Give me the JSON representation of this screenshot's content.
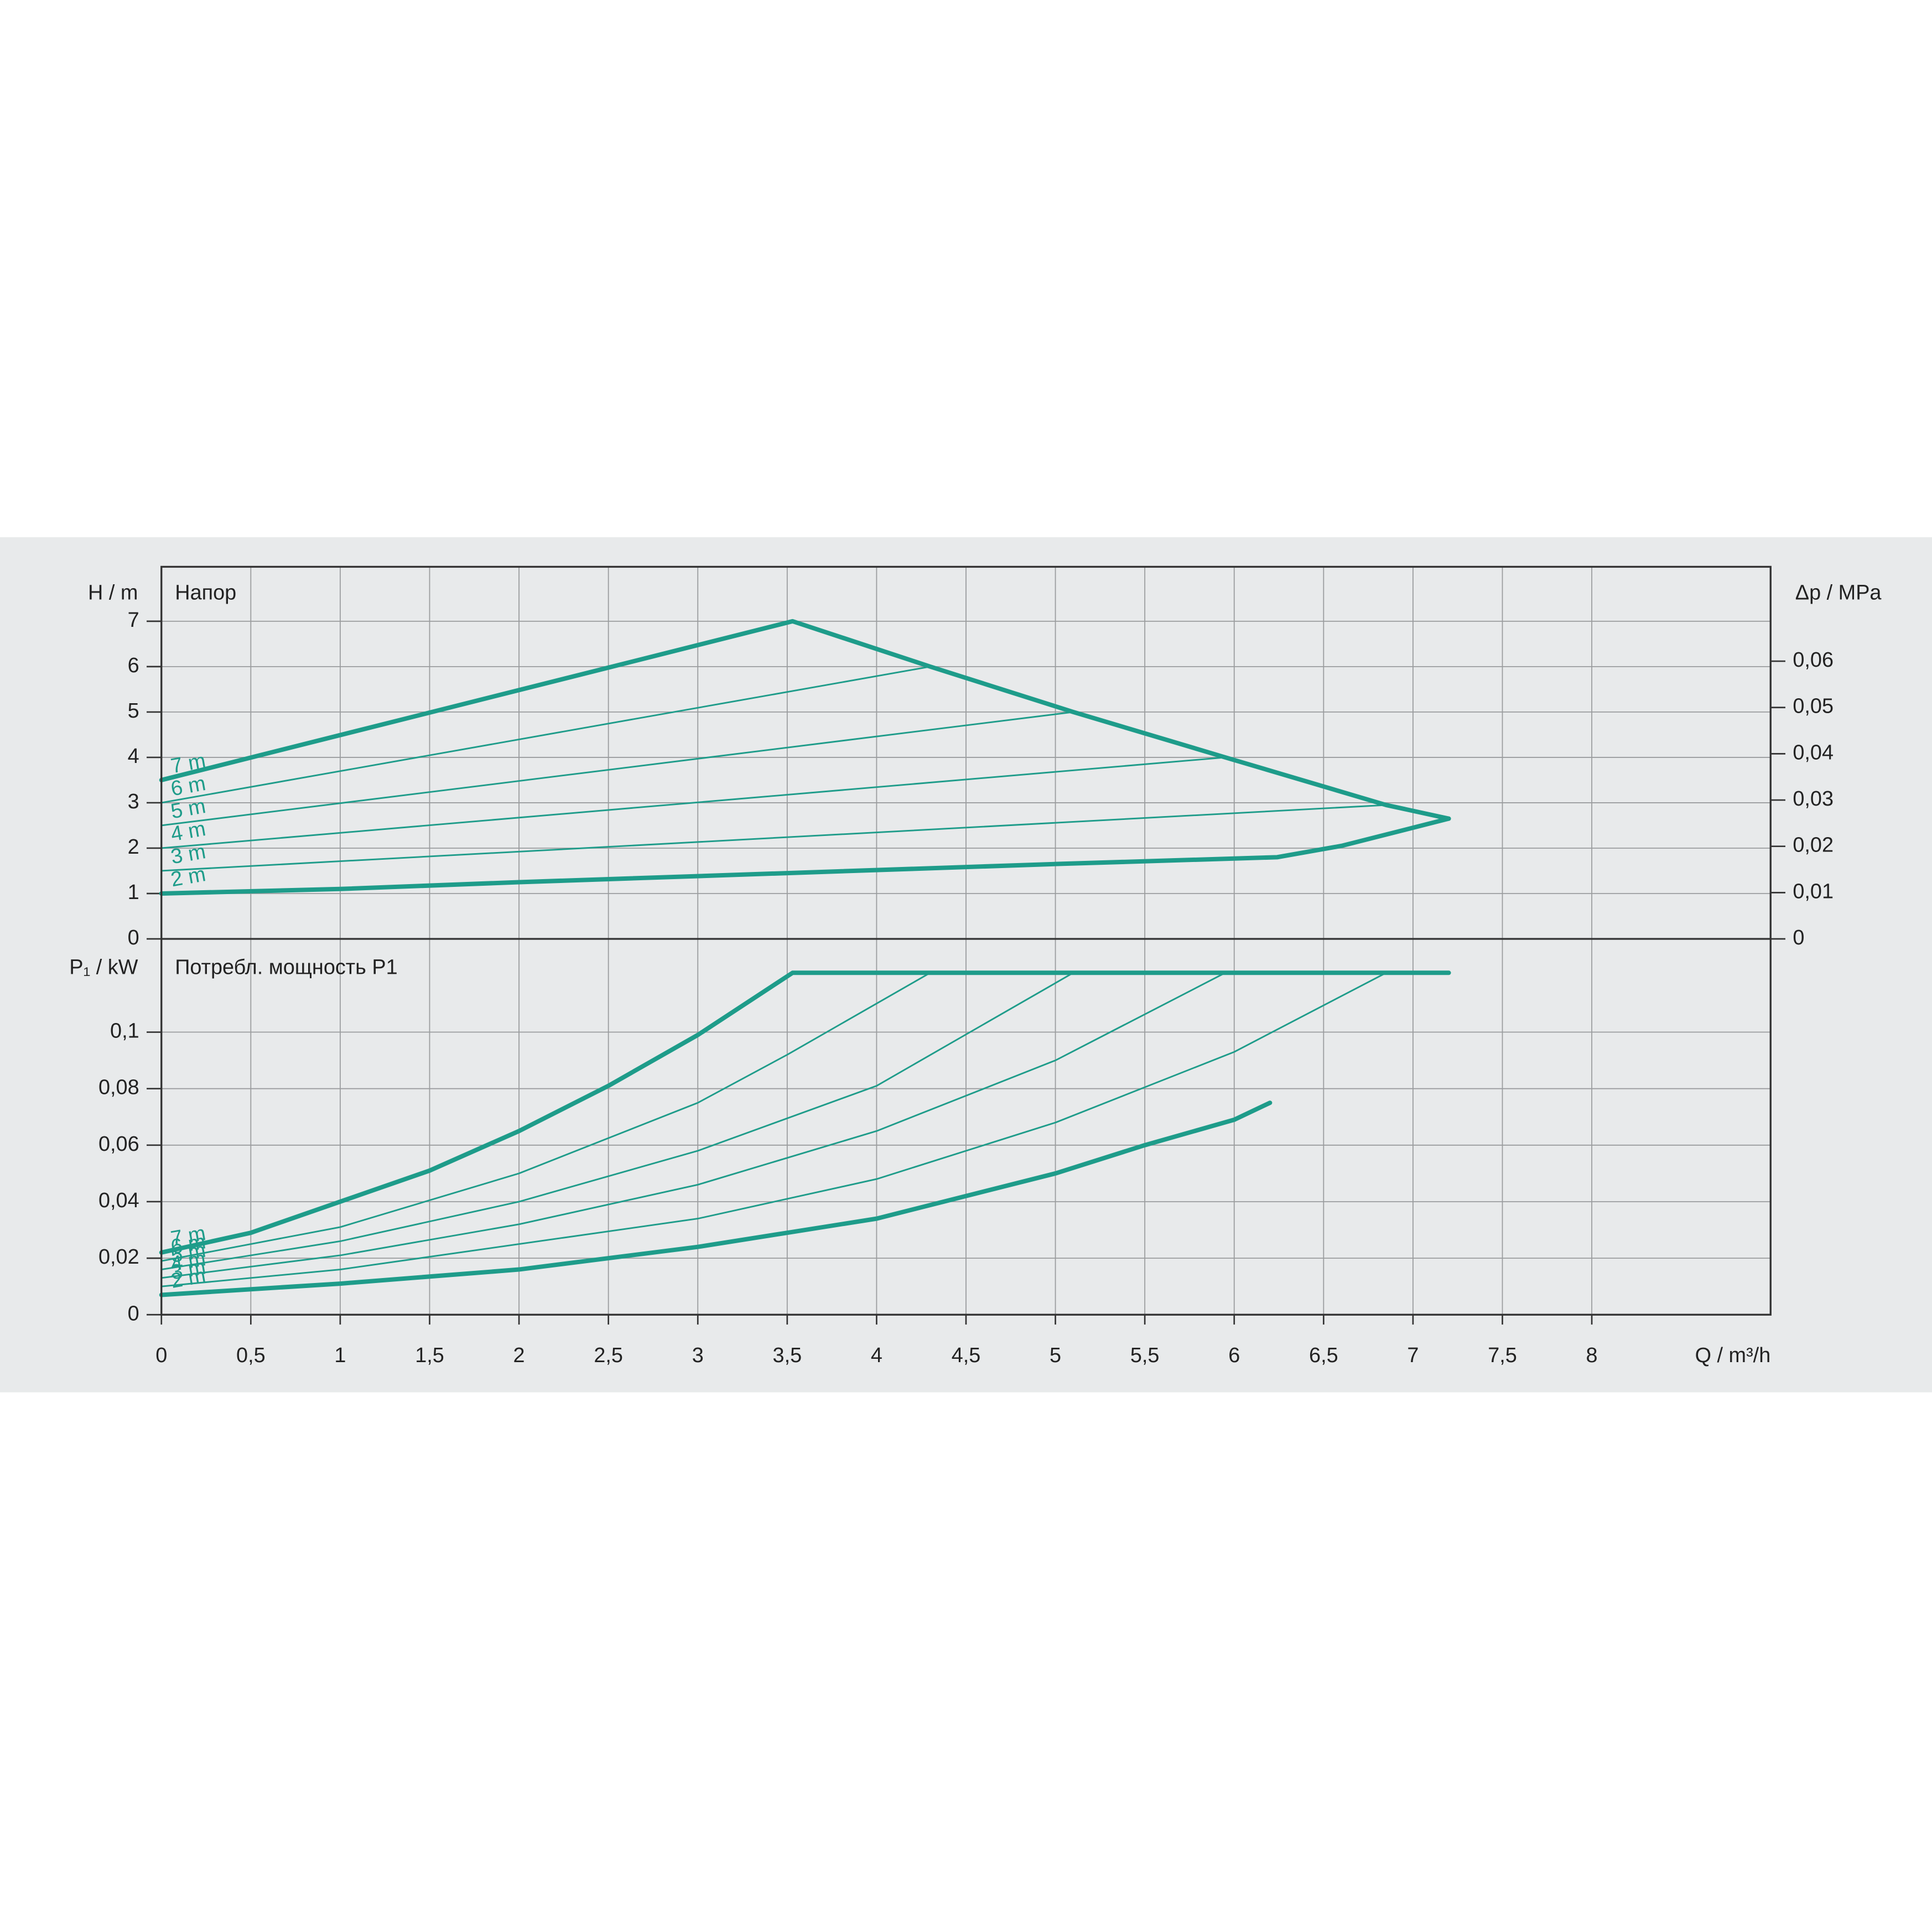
{
  "chart_data": [
    {
      "type": "line",
      "title": "Напор",
      "y_label": "H / m",
      "y2_label": "Δp / MPa",
      "xlim": [
        0,
        9
      ],
      "ylim": [
        0,
        8.2
      ],
      "yticks": [
        0,
        1,
        2,
        3,
        4,
        5,
        6,
        7
      ],
      "y2lim": [
        0,
        0.0804
      ],
      "y2ticks": [
        0,
        {
          "value": 0.01,
          "label": "0,01"
        },
        {
          "value": 0.02,
          "label": "0,02"
        },
        {
          "value": 0.03,
          "label": "0,03"
        },
        {
          "value": 0.04,
          "label": "0,04"
        },
        {
          "value": 0.05,
          "label": "0,05"
        },
        {
          "value": 0.06,
          "label": "0,06"
        }
      ],
      "grid": true,
      "series": [
        {
          "name": "7 m",
          "color": "#1e9c8a",
          "x": [
            0,
            3.53,
            4.3,
            5.1,
            5.95,
            6.85,
            7.2
          ],
          "values": [
            3.5,
            7.0,
            6.0,
            5.0,
            4.0,
            2.95,
            2.65
          ]
        },
        {
          "name": "6 m",
          "color": "#1e9c8a",
          "x": [
            0,
            4.3
          ],
          "values": [
            3.0,
            6.0
          ]
        },
        {
          "name": "5 m",
          "color": "#1e9c8a",
          "x": [
            0,
            5.1
          ],
          "values": [
            2.5,
            5.0
          ]
        },
        {
          "name": "4 m",
          "color": "#1e9c8a",
          "x": [
            0,
            5.95
          ],
          "values": [
            2.0,
            4.0
          ]
        },
        {
          "name": "3 m",
          "color": "#1e9c8a",
          "x": [
            0,
            6.85
          ],
          "values": [
            1.5,
            2.95
          ]
        },
        {
          "name": "2 m",
          "color": "#1e9c8a",
          "x": [
            0,
            1,
            2,
            3.5,
            5,
            6.24,
            6.6,
            7.2
          ],
          "values": [
            1.0,
            1.1,
            1.25,
            1.45,
            1.65,
            1.8,
            2.05,
            2.65
          ]
        }
      ]
    },
    {
      "type": "line",
      "title": "Потребл. мощность P1",
      "y_label": "P₁ / kW",
      "x_label": "Q / m³/h",
      "xlim": [
        0,
        9
      ],
      "xticks": [
        0,
        {
          "value": 0.5,
          "label": "0,5"
        },
        1,
        {
          "value": 1.5,
          "label": "1,5"
        },
        2,
        {
          "value": 2.5,
          "label": "2,5"
        },
        3,
        {
          "value": 3.5,
          "label": "3,5"
        },
        4,
        {
          "value": 4.5,
          "label": "4,5"
        },
        5,
        {
          "value": 5.5,
          "label": "5,5"
        },
        6,
        {
          "value": 6.5,
          "label": "6,5"
        },
        7,
        {
          "value": 7.5,
          "label": "7,5"
        },
        8
      ],
      "ylim": [
        0,
        0.133
      ],
      "yticks": [
        0,
        {
          "value": 0.02,
          "label": "0,02"
        },
        {
          "value": 0.04,
          "label": "0,04"
        },
        {
          "value": 0.06,
          "label": "0,06"
        },
        {
          "value": 0.08,
          "label": "0,08"
        },
        {
          "value": 0.1,
          "label": "0,1"
        }
      ],
      "grid": true,
      "series": [
        {
          "name": "7 m",
          "color": "#1e9c8a",
          "x": [
            0,
            0.5,
            1,
            1.5,
            2,
            2.5,
            3,
            3.53,
            7.2
          ],
          "values": [
            0.022,
            0.029,
            0.04,
            0.051,
            0.065,
            0.081,
            0.099,
            0.121,
            0.121
          ]
        },
        {
          "name": "6 m",
          "color": "#1e9c8a",
          "x": [
            0,
            1,
            2,
            3,
            3.5,
            4.3
          ],
          "values": [
            0.019,
            0.031,
            0.05,
            0.075,
            0.092,
            0.121
          ]
        },
        {
          "name": "5 m",
          "color": "#1e9c8a",
          "x": [
            0,
            1,
            2,
            3,
            4,
            5.1
          ],
          "values": [
            0.016,
            0.026,
            0.04,
            0.058,
            0.081,
            0.121
          ]
        },
        {
          "name": "4 m",
          "color": "#1e9c8a",
          "x": [
            0,
            1,
            2,
            3,
            4,
            5,
            5.95
          ],
          "values": [
            0.013,
            0.021,
            0.032,
            0.046,
            0.065,
            0.09,
            0.121
          ]
        },
        {
          "name": "3 m",
          "color": "#1e9c8a",
          "x": [
            0,
            1,
            2,
            3,
            4,
            5,
            6,
            6.85
          ],
          "values": [
            0.01,
            0.016,
            0.025,
            0.034,
            0.048,
            0.068,
            0.093,
            0.121
          ]
        },
        {
          "name": "2 m",
          "color": "#1e9c8a",
          "x": [
            0,
            1,
            2,
            3,
            3.5,
            4,
            4.5,
            5,
            5.5,
            6,
            6.2
          ],
          "values": [
            0.007,
            0.011,
            0.016,
            0.024,
            0.029,
            0.034,
            0.042,
            0.05,
            0.06,
            0.069,
            0.075
          ]
        }
      ]
    }
  ]
}
